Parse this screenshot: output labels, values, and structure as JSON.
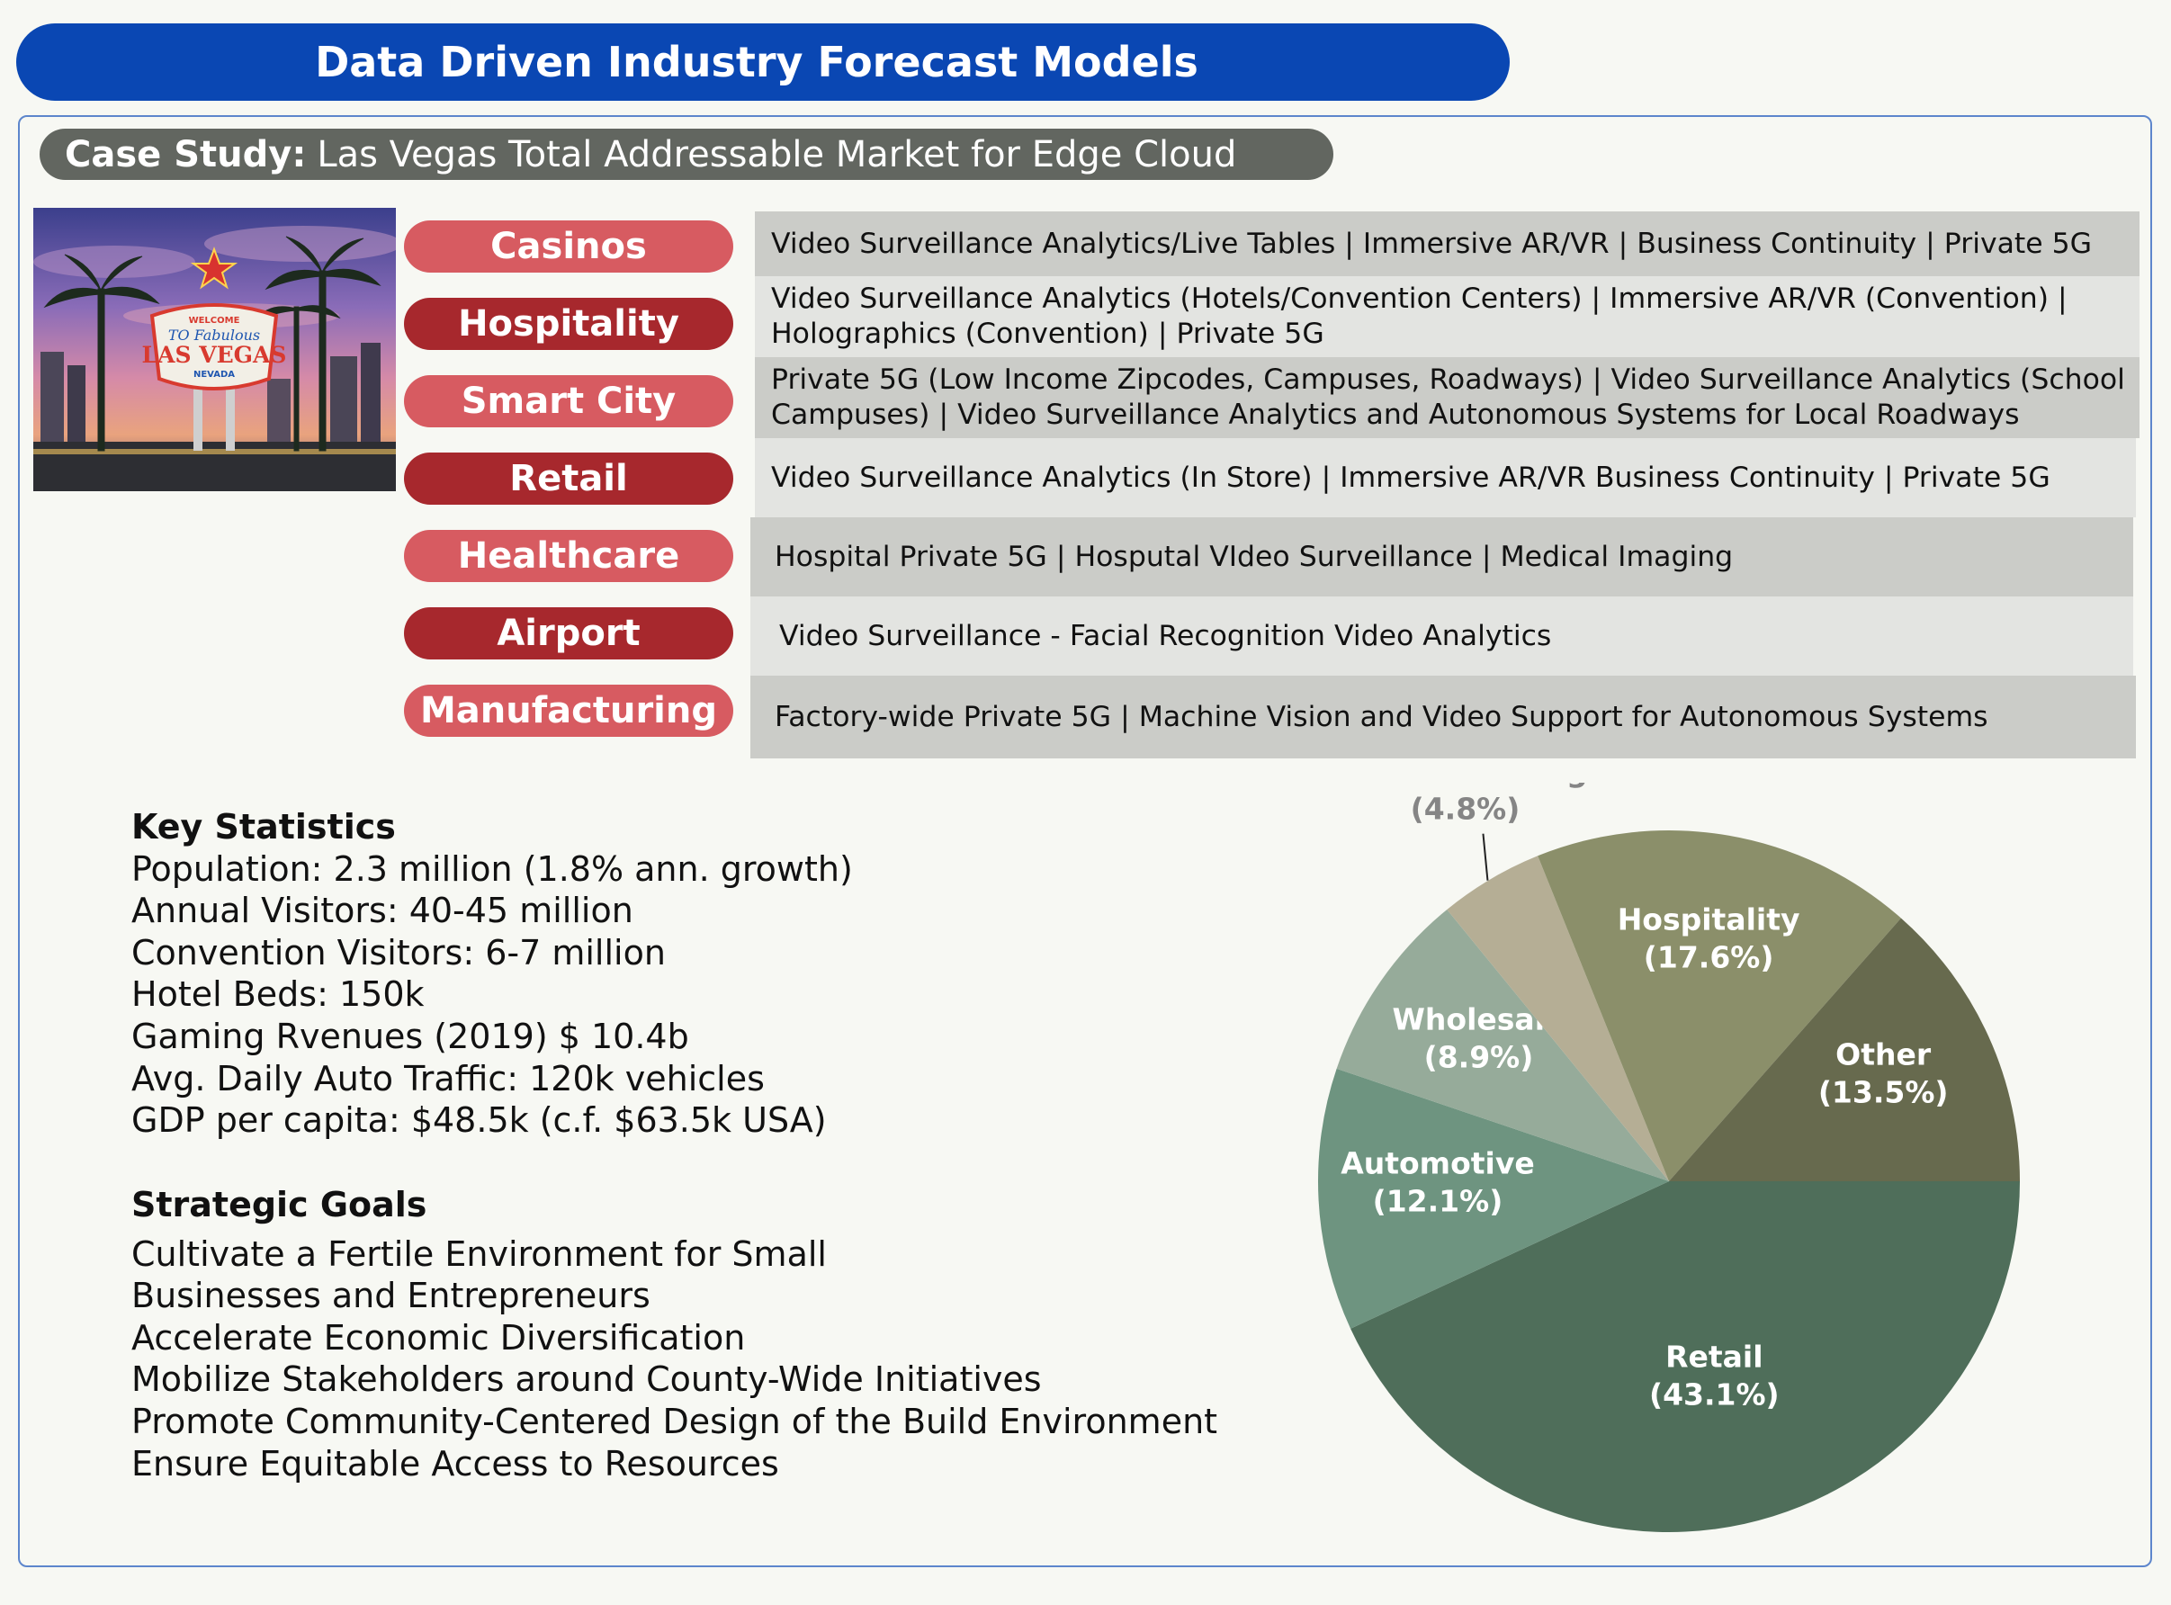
{
  "header": {
    "title": "Data Driven Industry Forecast Models"
  },
  "case_study": {
    "label": "Case Study:",
    "text": "Las Vegas Total Addressable Market for Edge Cloud"
  },
  "photo": {
    "sign_line1": "WELCOME",
    "sign_line2": "TO Fabulous",
    "sign_line3": "LAS VEGAS",
    "sign_line4": "NEVADA"
  },
  "industries": [
    {
      "name": "Casinos",
      "description": "Video Surveillance Analytics/Live Tables | Immersive AR/VR | Business Continuity | Private 5G"
    },
    {
      "name": "Hospitality",
      "description": "Video Surveillance Analytics (Hotels/Convention Centers) | Immersive AR/VR (Convention) | Holographics (Convention) | Private 5G"
    },
    {
      "name": "Smart City",
      "description": "Private 5G (Low Income Zipcodes, Campuses, Roadways) | Video Surveillance Analytics (School Campuses) | Video Surveillance Analytics and Autonomous Systems for Local Roadways"
    },
    {
      "name": "Retail",
      "description": "Video Surveillance Analytics (In Store) | Immersive AR/VR Business Continuity | Private 5G"
    },
    {
      "name": "Healthcare",
      "description": "Hospital Private 5G | Hosputal VIdeo Surveillance | Medical Imaging"
    },
    {
      "name": "Airport",
      "description": "Video Surveillance - Facial Recognition Video Analytics"
    },
    {
      "name": "Manufacturing",
      "description": "Factory-wide Private 5G | Machine Vision and Video Support for Autonomous Systems"
    }
  ],
  "key_statistics": {
    "heading": "Key Statistics",
    "items": [
      "Population: 2.3 million (1.8% ann. growth)",
      "Annual Visitors: 40-45 million",
      "Convention Visitors: 6-7 million",
      "Hotel Beds: 150k",
      "Gaming Rvenues (2019) $ 10.4b",
      "Avg. Daily Auto Traffic: 120k vehicles",
      "GDP per capita: $48.5k (c.f. $63.5k  USA)"
    ]
  },
  "strategic_goals": {
    "heading": "Strategic Goals",
    "items": [
      "Cultivate a Fertile Environment for Small",
      "Businesses and Entrepreneurs",
      "Accelerate Economic Diversification",
      "Mobilize Stakeholders around County-Wide Initiatives",
      "Promote Community-Centered Design of the Build Environment",
      "Ensure Equitable Access to Resources"
    ]
  },
  "chart_data": {
    "type": "pie",
    "title": "",
    "start_angle_deg": 0,
    "direction": "clockwise",
    "slices": [
      {
        "label": "Retail",
        "value": 43.1,
        "percent_label": "(43.1%)",
        "color": "#4f6e5a",
        "label_color": "#ffffff"
      },
      {
        "label": "Automotive",
        "value": 12.1,
        "percent_label": "(12.1%)",
        "color": "#6e9480",
        "label_color": "#ffffff"
      },
      {
        "label": "Wholesale",
        "value": 8.9,
        "percent_label": "(8.9%)",
        "color": "#96ab9a",
        "label_color": "#ffffff"
      },
      {
        "label": "Manufacturing",
        "value": 4.8,
        "percent_label": "(4.8%)",
        "color": "#b5ae95",
        "label_color": "#858585"
      },
      {
        "label": "Hospitality",
        "value": 17.6,
        "percent_label": "(17.6%)",
        "color": "#8b8f6a",
        "label_color": "#ffffff"
      },
      {
        "label": "Other",
        "value": 13.5,
        "percent_label": "(13.5%)",
        "color": "#676a4e",
        "label_color": "#ffffff"
      }
    ]
  }
}
